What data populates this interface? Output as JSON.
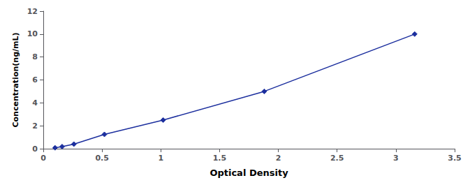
{
  "chart_data": {
    "type": "line",
    "x": [
      0.1,
      0.16,
      0.26,
      0.52,
      1.02,
      1.88,
      3.16
    ],
    "values": [
      0.08,
      0.18,
      0.4,
      1.25,
      2.5,
      5.0,
      10.0
    ],
    "color": "#1c2f9e",
    "marker": "diamond",
    "xlabel": "Optical Density",
    "ylabel": "Concentration(ng/mL)",
    "xlim": [
      0,
      3.5
    ],
    "ylim": [
      0,
      12
    ],
    "xticks": [
      0,
      0.5,
      1.0,
      1.5,
      2.0,
      2.5,
      3.0,
      3.5
    ],
    "yticks": [
      0,
      2,
      4,
      6,
      8,
      10,
      12
    ],
    "grid": false
  }
}
